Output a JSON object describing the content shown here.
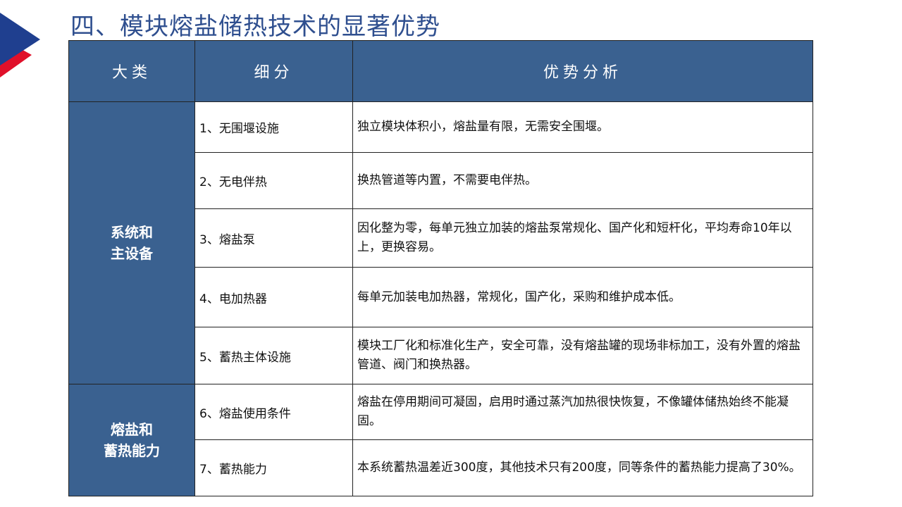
{
  "title": "四、模块熔盐储热技术的显著优势",
  "headers": [
    "大类",
    "细分",
    "优势分析"
  ],
  "categories": [
    {
      "line1": "系统和",
      "line2": "主设备"
    },
    {
      "line1": "熔盐和",
      "line2": "蓄热能力"
    }
  ],
  "rows": [
    {
      "sub": "1、无围堰设施",
      "desc": "独立模块体积小，熔盐量有限，无需安全围堰。"
    },
    {
      "sub": "2、无电伴热",
      "desc": "换热管道等内置，不需要电伴热。"
    },
    {
      "sub": "3、熔盐泵",
      "desc": "因化整为零，每单元独立加装的熔盐泵常规化、国产化和短杆化，平均寿命10年以上，更换容易。"
    },
    {
      "sub": "4、电加热器",
      "desc": "每单元加装电加热器，常规化，国产化，采购和维护成本低。"
    },
    {
      "sub": "5、蓄热主体设施",
      "desc": "模块工厂化和标准化生产，安全可靠，没有熔盐罐的现场非标加工，没有外置的熔盐管道、阀门和换热器。"
    },
    {
      "sub": "6、熔盐使用条件",
      "desc": "熔盐在停用期间可凝固，启用时通过蒸汽加热很快恢复，不像罐体储热始终不能凝固。"
    },
    {
      "sub": "7、蓄热能力",
      "desc": "本系统蓄热温差近300度，其他技术只有200度，同等条件的蓄热能力提高了30%。"
    }
  ],
  "colors": {
    "header": "#3a6190",
    "title": "#2f4f8f",
    "logo_blue": "#1f3f8f",
    "logo_red": "#e0102a"
  }
}
